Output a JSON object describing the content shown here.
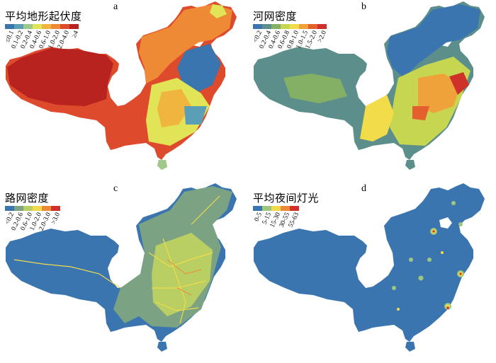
{
  "panels": [
    {
      "letter": "a",
      "title": "平均地形起伏度",
      "legend": [
        {
          "label": "≤0.1",
          "color": "#3a75b0"
        },
        {
          "label": "0.1-0.2",
          "color": "#5a9fb5"
        },
        {
          "label": "0.2-0.4",
          "color": "#9fc98a"
        },
        {
          "label": "0.4-0.6",
          "color": "#e2e457"
        },
        {
          "label": "0.6-1.0",
          "color": "#f0b53f"
        },
        {
          "label": "1.0-2.0",
          "color": "#ec8a35"
        },
        {
          "label": "2.0-4.0",
          "color": "#dd4a2c"
        },
        {
          "label": "≥4",
          "color": "#b9231f"
        }
      ]
    },
    {
      "letter": "b",
      "title": "河网密度",
      "legend": [
        {
          "label": "<0.2",
          "color": "#3a75b0"
        },
        {
          "label": "0.2-0.4",
          "color": "#5c8f8b"
        },
        {
          "label": "0.4-0.6",
          "color": "#84b065"
        },
        {
          "label": "0.6-0.8",
          "color": "#c7d650"
        },
        {
          "label": "0.8-1.0",
          "color": "#f3dc4a"
        },
        {
          "label": "1.0-1.5",
          "color": "#f0a23a"
        },
        {
          "label": "1.5-2.0",
          "color": "#e3602e"
        },
        {
          "label": ">2.0",
          "color": "#d0302a"
        }
      ]
    },
    {
      "letter": "c",
      "title": "路网密度",
      "legend": [
        {
          "label": "<0.2",
          "color": "#3a75b0"
        },
        {
          "label": "0.2-0.6",
          "color": "#7aa283"
        },
        {
          "label": "0.6-1.0",
          "color": "#b9cf63"
        },
        {
          "label": "1.0-2.0",
          "color": "#f2db4a"
        },
        {
          "label": "2.0-3.0",
          "color": "#ee8a36"
        },
        {
          "label": ">3.0",
          "color": "#d0302a"
        }
      ]
    },
    {
      "letter": "d",
      "title": "平均夜间灯光",
      "legend": [
        {
          "label": "0-5",
          "color": "#3a75b0"
        },
        {
          "label": "5-15",
          "color": "#9dc77f"
        },
        {
          "label": "15-30",
          "color": "#f2db4a"
        },
        {
          "label": "30-55",
          "color": "#ee8a36"
        },
        {
          "label": "55-63",
          "color": "#d0302a"
        }
      ]
    }
  ]
}
